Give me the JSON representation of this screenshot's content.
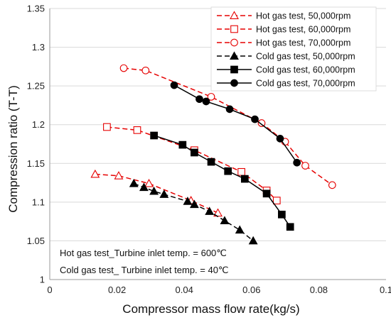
{
  "chart_data": {
    "type": "line",
    "xlabel": "Compressor  mass flow rate(kg/s)",
    "ylabel": "Compression ratio (T-T)",
    "xlim": [
      0,
      0.1
    ],
    "ylim": [
      1,
      1.35
    ],
    "x_ticks": [
      0,
      0.02,
      0.04,
      0.06,
      0.08,
      0.1
    ],
    "x_tick_labels": [
      "0",
      "0.02",
      "0.04",
      "0.06",
      "0.08",
      "0.1"
    ],
    "y_ticks": [
      1,
      1.05,
      1.1,
      1.15,
      1.2,
      1.25,
      1.3,
      1.35
    ],
    "y_tick_labels": [
      "1",
      "1.05",
      "1.1",
      "1.15",
      "1.2",
      "1.25",
      "1.3",
      "1.35"
    ],
    "grid": "horizontal",
    "legend_position": "top-right",
    "annotations": [
      "Hot gas test_Turbine inlet temp. = 600℃",
      "Cold gas test_ Turbine inlet temp. = 40℃"
    ],
    "series": [
      {
        "name": "Hot gas test, 50,000rpm",
        "color": "#e60000",
        "line": "dashed",
        "marker": "triangle",
        "filled": false,
        "x": [
          0.0135,
          0.0205,
          0.0295,
          0.042,
          0.05
        ],
        "y": [
          1.136,
          1.134,
          1.124,
          1.102,
          1.086
        ]
      },
      {
        "name": "Hot gas test, 60,000rpm",
        "color": "#e60000",
        "line": "dashed",
        "marker": "square",
        "filled": false,
        "x": [
          0.017,
          0.026,
          0.043,
          0.057,
          0.0645,
          0.0675
        ],
        "y": [
          1.197,
          1.193,
          1.167,
          1.139,
          1.115,
          1.102
        ]
      },
      {
        "name": "Hot gas test, 70,000rpm",
        "color": "#e60000",
        "line": "dashed",
        "marker": "circle",
        "filled": false,
        "x": [
          0.022,
          0.0285,
          0.048,
          0.063,
          0.07,
          0.076,
          0.084
        ],
        "y": [
          1.273,
          1.27,
          1.236,
          1.202,
          1.178,
          1.147,
          1.122
        ]
      },
      {
        "name": "Cold gas test, 50,000rpm",
        "color": "#000000",
        "line": "dashed",
        "marker": "triangle",
        "filled": true,
        "x": [
          0.025,
          0.028,
          0.031,
          0.034,
          0.041,
          0.043,
          0.0475,
          0.052,
          0.0565,
          0.0605
        ],
        "y": [
          1.124,
          1.119,
          1.114,
          1.11,
          1.101,
          1.097,
          1.088,
          1.076,
          1.064,
          1.05
        ]
      },
      {
        "name": "Cold gas test, 60,000rpm",
        "color": "#000000",
        "line": "solid",
        "marker": "square",
        "filled": true,
        "x": [
          0.031,
          0.0395,
          0.043,
          0.048,
          0.053,
          0.058,
          0.0645,
          0.069,
          0.0715
        ],
        "y": [
          1.186,
          1.174,
          1.164,
          1.152,
          1.14,
          1.13,
          1.111,
          1.084,
          1.068
        ]
      },
      {
        "name": "Cold gas test, 70,000rpm",
        "color": "#000000",
        "line": "solid",
        "marker": "circle",
        "filled": true,
        "x": [
          0.037,
          0.0445,
          0.0465,
          0.0535,
          0.061,
          0.0685,
          0.0735
        ],
        "y": [
          1.251,
          1.233,
          1.23,
          1.22,
          1.207,
          1.182,
          1.151
        ]
      }
    ]
  }
}
